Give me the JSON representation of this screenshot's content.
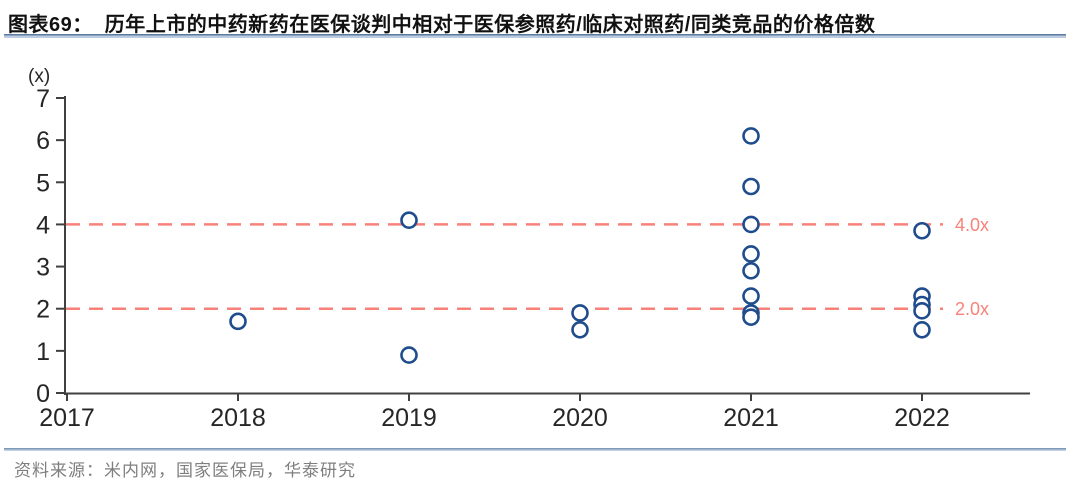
{
  "header": {
    "tag": "图表69：",
    "title": "历年上市的中药新药在医保谈判中相对于医保参照药/临床对照药/同类竞品的价格倍数"
  },
  "footer": {
    "source": "资料来源：米内网，国家医保局，华泰研究"
  },
  "chart_data": {
    "type": "scatter",
    "title": "历年上市的中药新药在医保谈判中相对于医保参照药/临床对照药/同类竞品的价格倍数",
    "unit_label": "(x)",
    "xlabel": "",
    "ylabel": "(x)",
    "x_ticks": [
      "2017",
      "2018",
      "2019",
      "2020",
      "2021",
      "2022"
    ],
    "y_ticks": [
      0,
      1,
      2,
      3,
      4,
      5,
      6,
      7
    ],
    "ylim": [
      0,
      7
    ],
    "grid": false,
    "legend": "none",
    "points": [
      {
        "year": "2018",
        "value": 1.7
      },
      {
        "year": "2019",
        "value": 4.1
      },
      {
        "year": "2019",
        "value": 0.9
      },
      {
        "year": "2020",
        "value": 1.9
      },
      {
        "year": "2020",
        "value": 1.5
      },
      {
        "year": "2021",
        "value": 6.1
      },
      {
        "year": "2021",
        "value": 4.9
      },
      {
        "year": "2021",
        "value": 4.0
      },
      {
        "year": "2021",
        "value": 3.3
      },
      {
        "year": "2021",
        "value": 2.9
      },
      {
        "year": "2021",
        "value": 2.3
      },
      {
        "year": "2021",
        "value": 1.9
      },
      {
        "year": "2021",
        "value": 1.8
      },
      {
        "year": "2022",
        "value": 3.85
      },
      {
        "year": "2022",
        "value": 2.3
      },
      {
        "year": "2022",
        "value": 2.1
      },
      {
        "year": "2022",
        "value": 1.95
      },
      {
        "year": "2022",
        "value": 1.5
      }
    ],
    "reference_lines": [
      {
        "value": 4.0,
        "label": "4.0x"
      },
      {
        "value": 2.0,
        "label": "2.0x"
      }
    ],
    "colors": {
      "point_stroke": "#1E4C8C",
      "point_fill": "#ffffff",
      "reference": "#F8827A",
      "axis": "#404040",
      "tick_label": "#262626"
    }
  }
}
